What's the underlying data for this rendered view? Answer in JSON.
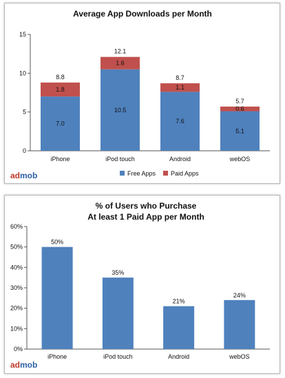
{
  "chart_data": [
    {
      "type": "bar",
      "stacked": true,
      "title": "Average App Downloads per Month",
      "categories": [
        "iPhone",
        "iPod touch",
        "Android",
        "webOS"
      ],
      "series": [
        {
          "name": "Free Apps",
          "values": [
            7.0,
            10.5,
            7.6,
            5.1
          ],
          "labels": [
            "7.0",
            "10.5",
            "7.6",
            "5.1"
          ]
        },
        {
          "name": "Paid Apps",
          "values": [
            1.8,
            1.6,
            1.1,
            0.6
          ],
          "labels": [
            "1.8",
            "1.6",
            "1.1",
            "0.6"
          ]
        }
      ],
      "totals": [
        8.8,
        12.1,
        8.7,
        5.7
      ],
      "total_labels": [
        "8.8",
        "12.1",
        "8.7",
        "5.7"
      ],
      "ylim": [
        0,
        15
      ],
      "yticks": [
        "0",
        "5",
        "10",
        "15"
      ],
      "ytick_values": [
        0,
        5,
        10,
        15
      ],
      "grid": false,
      "legend": "bottom",
      "colors": {
        "Free Apps": "#4f81bd",
        "Paid Apps": "#c0504d"
      }
    },
    {
      "type": "bar",
      "title": "% of Users who Purchase",
      "subtitle": "At least 1 Paid App per Month",
      "categories": [
        "iPhone",
        "iPod touch",
        "Android",
        "webOS"
      ],
      "values": [
        50,
        35,
        21,
        24
      ],
      "value_labels": [
        "50%",
        "35%",
        "21%",
        "24%"
      ],
      "ylim": [
        0,
        60
      ],
      "yticks": [
        "0%",
        "10%",
        "20%",
        "30%",
        "40%",
        "50%",
        "60%"
      ],
      "ytick_values": [
        0,
        10,
        20,
        30,
        40,
        50,
        60
      ],
      "grid": false,
      "colors": {
        "bar": "#4f81bd"
      }
    }
  ],
  "branding": {
    "logo_part1": "ad",
    "logo_part2": "mob"
  }
}
